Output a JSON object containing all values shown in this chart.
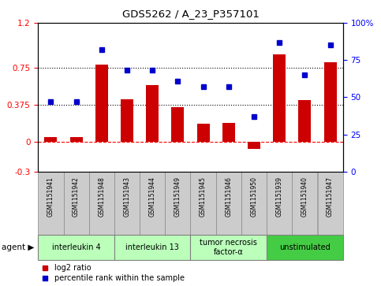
{
  "title": "GDS5262 / A_23_P357101",
  "samples": [
    "GSM1151941",
    "GSM1151942",
    "GSM1151948",
    "GSM1151943",
    "GSM1151944",
    "GSM1151949",
    "GSM1151945",
    "GSM1151946",
    "GSM1151950",
    "GSM1151939",
    "GSM1151940",
    "GSM1151947"
  ],
  "log2_ratio": [
    0.05,
    0.05,
    0.78,
    0.43,
    0.57,
    0.35,
    0.18,
    0.19,
    -0.07,
    0.88,
    0.42,
    0.8
  ],
  "percentile": [
    47,
    47,
    82,
    68,
    68,
    61,
    57,
    57,
    37,
    87,
    65,
    85
  ],
  "groups": [
    {
      "label": "interleukin 4",
      "start": 0,
      "end": 2,
      "color": "#bbffbb"
    },
    {
      "label": "interleukin 13",
      "start": 3,
      "end": 5,
      "color": "#bbffbb"
    },
    {
      "label": "tumor necrosis\nfactor-α",
      "start": 6,
      "end": 8,
      "color": "#bbffbb"
    },
    {
      "label": "unstimulated",
      "start": 9,
      "end": 11,
      "color": "#44cc44"
    }
  ],
  "bar_color": "#cc0000",
  "dot_color": "#0000cc",
  "sample_box_color": "#cccccc",
  "sample_box_edge": "#888888",
  "ylim_left": [
    -0.3,
    1.2
  ],
  "ylim_right": [
    0,
    100
  ],
  "yticks_left": [
    -0.3,
    0,
    0.375,
    0.75,
    1.2
  ],
  "yticks_right": [
    0,
    25,
    50,
    75,
    100
  ],
  "dotted_lines": [
    0.375,
    0.75
  ],
  "zero_line": 0.0,
  "bar_width": 0.5
}
